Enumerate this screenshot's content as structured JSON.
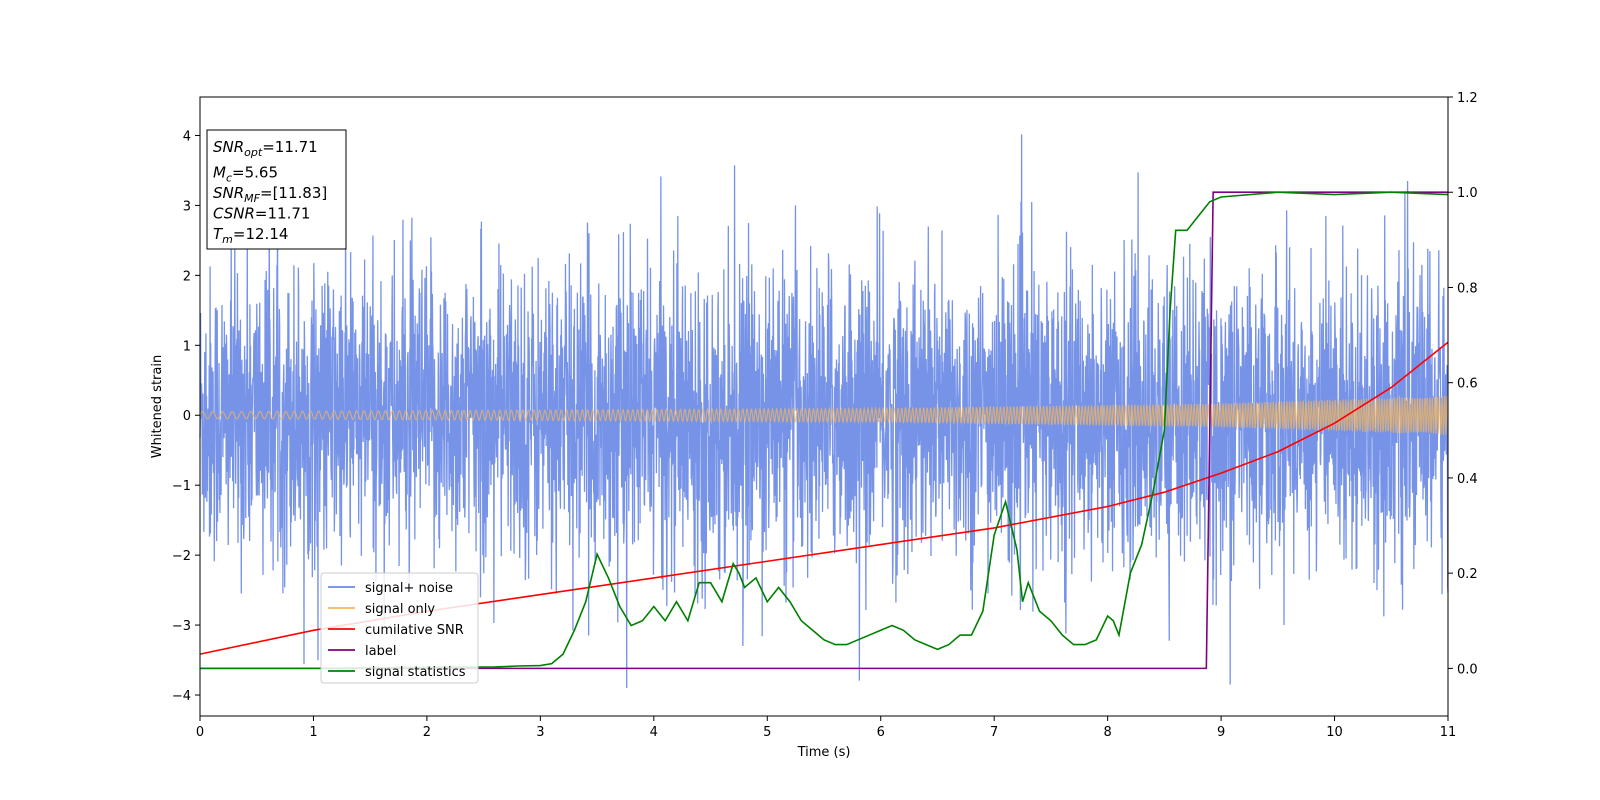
{
  "chart_data": {
    "type": "line",
    "title": "",
    "xlabel": "Time (s)",
    "ylabel": "Whitened strain",
    "xlim": [
      0,
      11
    ],
    "ylim_left": [
      -4.3,
      4.55
    ],
    "ylim_right": [
      -0.1,
      1.2
    ],
    "x_ticks": [
      0,
      1,
      2,
      3,
      4,
      5,
      6,
      7,
      8,
      9,
      10,
      11
    ],
    "y_left_ticks": [
      -4,
      -3,
      -2,
      -1,
      0,
      1,
      2,
      3,
      4
    ],
    "y_right_ticks": [
      0.0,
      0.2,
      0.4,
      0.6,
      0.8,
      1.0,
      1.2
    ],
    "x_tick_labels": [
      "0",
      "1",
      "2",
      "3",
      "4",
      "5",
      "6",
      "7",
      "8",
      "9",
      "10",
      "11"
    ],
    "y_left_tick_labels": [
      "−4",
      "−3",
      "−2",
      "−1",
      "0",
      "1",
      "2",
      "3",
      "4"
    ],
    "y_right_tick_labels": [
      "0.0",
      "0.2",
      "0.4",
      "0.6",
      "0.8",
      "1.0",
      "1.2"
    ],
    "grid": false,
    "legend_position": "lower-left",
    "legend": [
      "signal+ noise",
      "signal only",
      "cumilative SNR",
      "label",
      "signal statistics"
    ],
    "colors": {
      "noise": "#6a8ae6",
      "signal": "#f5b55a",
      "snr": "#ff0000",
      "label": "#800080",
      "stats": "#008000"
    },
    "annotation": [
      {
        "var": "SNR",
        "sub": "opt",
        "value": "=11.71"
      },
      {
        "var": "M",
        "sub": "c",
        "value": "=5.65"
      },
      {
        "var": "SNR",
        "sub": "MF",
        "value": "=[11.83]"
      },
      {
        "var": "CSNR",
        "sub": "",
        "value": "=11.71"
      },
      {
        "var": "T",
        "sub": "m",
        "value": "=12.14"
      }
    ],
    "series": [
      {
        "name": "signal+ noise",
        "axis": "left",
        "kind": "noise",
        "x_range": [
          0,
          11
        ],
        "std": 1.05,
        "max": 4.2,
        "min": -3.9
      },
      {
        "name": "signal only",
        "axis": "left",
        "kind": "chirp",
        "amplitude": [
          [
            0,
            0.05
          ],
          [
            6,
            0.1
          ],
          [
            9,
            0.17
          ],
          [
            11,
            0.28
          ]
        ]
      },
      {
        "name": "cumilative SNR",
        "axis": "right",
        "x": [
          0,
          1,
          2,
          3,
          4,
          5,
          6,
          7,
          8,
          8.5,
          9,
          9.5,
          10,
          10.5,
          11
        ],
        "y": [
          0.03,
          0.08,
          0.12,
          0.155,
          0.19,
          0.225,
          0.26,
          0.295,
          0.34,
          0.37,
          0.41,
          0.455,
          0.515,
          0.59,
          0.685
        ]
      },
      {
        "name": "label",
        "axis": "right",
        "x": [
          0,
          8.87,
          8.93,
          11
        ],
        "y": [
          0,
          0,
          1,
          1
        ]
      },
      {
        "name": "signal statistics",
        "axis": "right",
        "x": [
          0,
          1,
          2,
          2.6,
          2.8,
          3.0,
          3.1,
          3.2,
          3.3,
          3.4,
          3.5,
          3.6,
          3.7,
          3.8,
          3.9,
          4.0,
          4.1,
          4.2,
          4.3,
          4.4,
          4.5,
          4.6,
          4.7,
          4.75,
          4.8,
          4.9,
          5.0,
          5.1,
          5.2,
          5.3,
          5.4,
          5.5,
          5.6,
          5.7,
          5.8,
          5.9,
          6.0,
          6.1,
          6.2,
          6.3,
          6.4,
          6.5,
          6.6,
          6.7,
          6.8,
          6.9,
          7.0,
          7.1,
          7.2,
          7.25,
          7.3,
          7.4,
          7.5,
          7.6,
          7.7,
          7.8,
          7.9,
          8.0,
          8.05,
          8.1,
          8.2,
          8.3,
          8.4,
          8.5,
          8.55,
          8.6,
          8.7,
          8.8,
          8.9,
          9.0,
          9.5,
          10,
          10.5,
          11
        ],
        "y": [
          0,
          0,
          0.002,
          0.003,
          0.005,
          0.006,
          0.01,
          0.03,
          0.08,
          0.14,
          0.24,
          0.19,
          0.13,
          0.09,
          0.1,
          0.13,
          0.1,
          0.14,
          0.1,
          0.18,
          0.18,
          0.14,
          0.22,
          0.2,
          0.17,
          0.19,
          0.14,
          0.17,
          0.14,
          0.1,
          0.08,
          0.06,
          0.05,
          0.05,
          0.06,
          0.07,
          0.08,
          0.09,
          0.08,
          0.06,
          0.05,
          0.04,
          0.05,
          0.07,
          0.07,
          0.12,
          0.28,
          0.35,
          0.25,
          0.14,
          0.18,
          0.12,
          0.1,
          0.07,
          0.05,
          0.05,
          0.06,
          0.11,
          0.1,
          0.07,
          0.2,
          0.26,
          0.37,
          0.5,
          0.75,
          0.92,
          0.92,
          0.95,
          0.98,
          0.99,
          1.0,
          0.995,
          1.0,
          0.995
        ]
      }
    ]
  }
}
